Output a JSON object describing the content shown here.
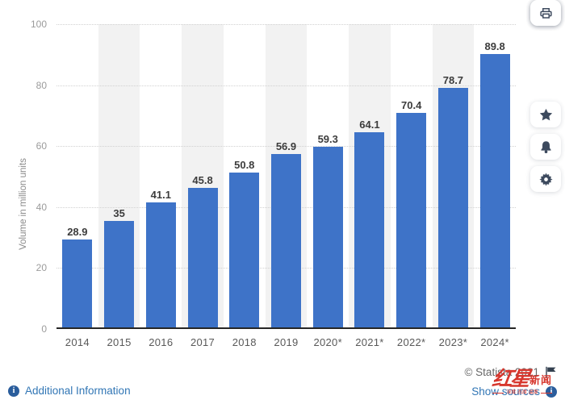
{
  "chart_data": {
    "type": "bar",
    "title": "",
    "categories": [
      "2014",
      "2015",
      "2016",
      "2017",
      "2018",
      "2019",
      "2020*",
      "2021*",
      "2022*",
      "2023*",
      "2024*"
    ],
    "values": [
      28.9,
      35,
      41.1,
      45.8,
      50.8,
      56.9,
      59.3,
      64.1,
      70.4,
      78.7,
      89.8
    ],
    "value_labels": [
      "28.9",
      "35",
      "41.1",
      "45.8",
      "50.8",
      "56.9",
      "59.3",
      "64.1",
      "70.4",
      "78.7",
      "89.8"
    ],
    "xlabel": "",
    "ylabel": "Volume in million units",
    "ylim": [
      0,
      100
    ],
    "yticks": [
      0,
      20,
      40,
      60,
      80,
      100
    ],
    "grid": "horizontal dotted gridlines, alternating vertical column stripes",
    "legend": "none",
    "bar_color": "#3e73c8",
    "stripe_color": "#f2f2f2",
    "axis_line_color": "#262626"
  },
  "sidebar": {
    "icons": [
      "star-icon",
      "bell-icon",
      "gear-icon",
      "share-icon",
      "quote-icon",
      "print-icon"
    ]
  },
  "footer": {
    "additional_info_label": "Additional Information",
    "copyright": "© Statista 2021",
    "show_sources_label": "Show sources",
    "logo": {
      "main": "红星",
      "sub": "新闻",
      "tagline": "深度 态度 温度"
    }
  },
  "colors": {
    "link_blue": "#3176b5",
    "copyright_gray": "#666666",
    "logo_red": "#d7372e",
    "icon_navy": "#3d4a5e"
  }
}
